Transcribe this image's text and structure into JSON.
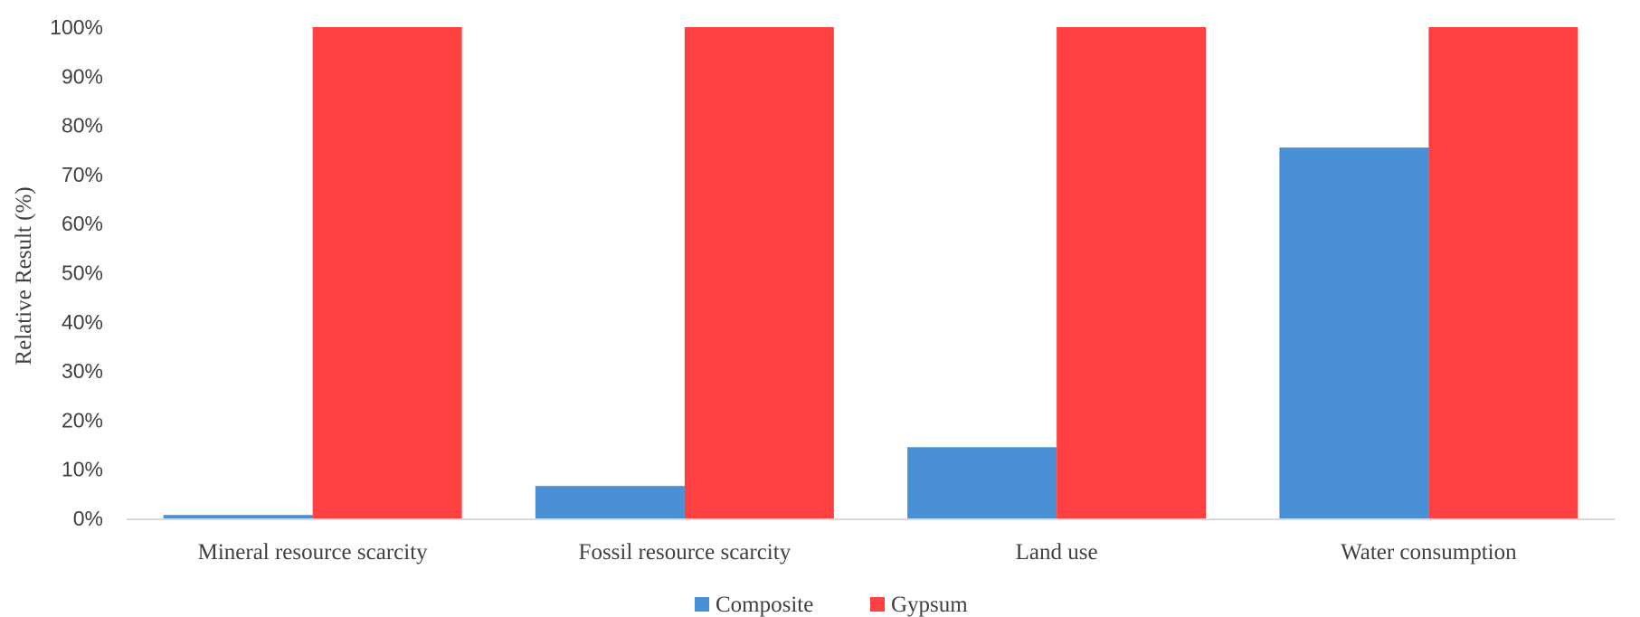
{
  "chart_data": {
    "type": "bar",
    "title": "",
    "xlabel": "",
    "ylabel": "Relative Result (%)",
    "ylim": [
      0,
      100
    ],
    "ytick_step": 10,
    "ytick_format": "percent",
    "grid": false,
    "legend_position": "bottom-center",
    "categories": [
      "Mineral resource scarcity",
      "Fossil resource scarcity",
      "Land use",
      "Water consumption"
    ],
    "series": [
      {
        "name": "Composite",
        "color": "#4a90d6",
        "values": [
          0.7,
          6.6,
          14.5,
          75.5
        ]
      },
      {
        "name": "Gypsum",
        "color": "#ff4040",
        "values": [
          100,
          100,
          100,
          100
        ]
      }
    ]
  }
}
